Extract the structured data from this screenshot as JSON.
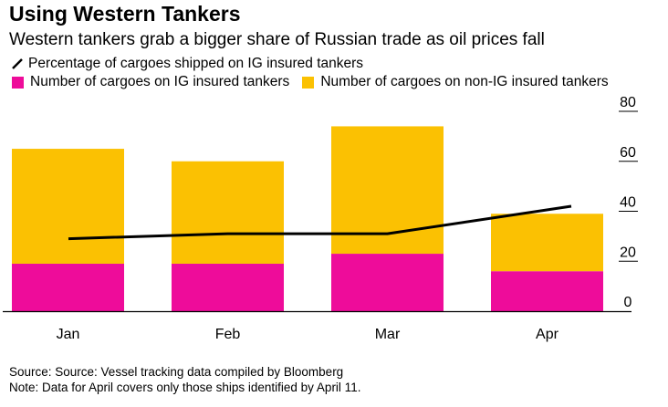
{
  "title": "Using Western Tankers",
  "subtitle": "Western tankers grab a bigger share of Russian trade as oil prices fall",
  "legend": {
    "line_label": "Percentage of cargoes shipped on IG insured tankers",
    "ig_label": "Number of cargoes on IG insured tankers",
    "nonig_label": "Number of cargoes on non-IG insured tankers"
  },
  "colors": {
    "ig": "#ee0c9a",
    "nonig": "#fbc102",
    "line": "#000000",
    "axis": "#000000"
  },
  "footnotes": {
    "source": "Source: Source: Vessel tracking data compiled by Bloomberg",
    "note": "Note: Data for April covers only those ships identified by April 11."
  },
  "chart_data": {
    "type": "bar",
    "stacked": true,
    "categories": [
      "Jan",
      "Feb",
      "Mar",
      "Apr"
    ],
    "series": [
      {
        "name": "Number of cargoes on IG insured tankers",
        "values": [
          19,
          19,
          23,
          16
        ]
      },
      {
        "name": "Number of cargoes on non-IG insured tankers",
        "values": [
          46,
          41,
          51,
          23
        ]
      }
    ],
    "line_series": {
      "name": "Percentage of cargoes shipped on IG insured tankers",
      "values": [
        29,
        31,
        31,
        42
      ]
    },
    "ylim": [
      0,
      80
    ],
    "yticks": [
      0,
      20,
      40,
      60,
      80
    ],
    "y_axis_side": "right",
    "grid": false,
    "legend_position": "top-left"
  }
}
